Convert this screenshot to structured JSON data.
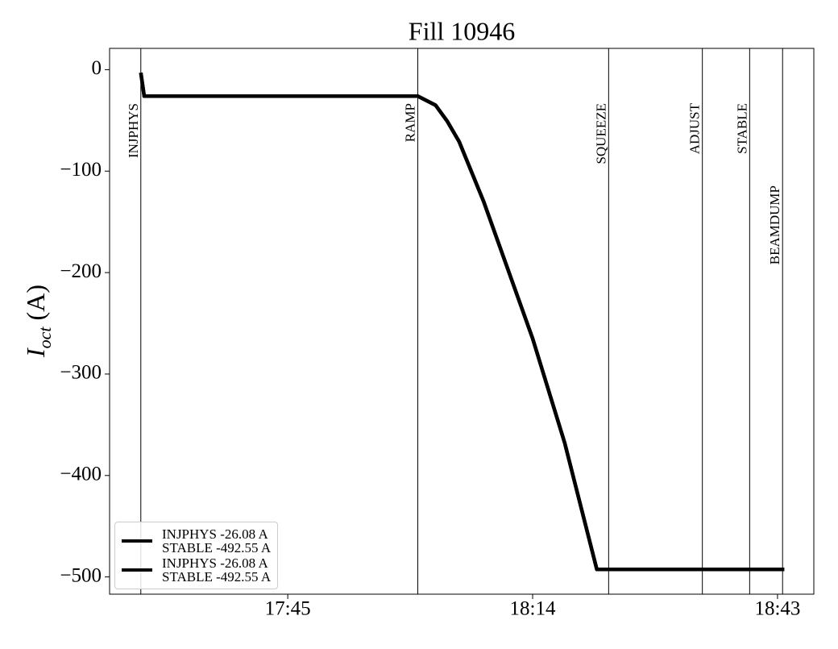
{
  "chart_data": {
    "type": "line",
    "title": "Fill 10946",
    "ylabel": "I_oct (A)",
    "x": [
      1047.6,
      1048.0,
      1080.4,
      1082.5,
      1083.9,
      1085.3,
      1088.2,
      1094.0,
      1097.8,
      1101.6,
      1123.8
    ],
    "series": [
      {
        "name": "INJPHYS -26.08 A\nSTABLE -492.55 A",
        "color": "#000000",
        "values": [
          -3,
          -26.08,
          -26.08,
          -35,
          -51,
          -71,
          -130,
          -265,
          -368,
          -492.55,
          -492.55
        ]
      },
      {
        "name": "INJPHYS -26.08 A\nSTABLE -492.55 A",
        "color": "#000000",
        "values": [
          -3,
          -26.08,
          -26.08,
          -35,
          -51,
          -71,
          -130,
          -265,
          -368,
          -492.55,
          -492.55
        ]
      }
    ],
    "xlim": [
      1043.9,
      1127.3
    ],
    "xticks": [
      {
        "value": 1065,
        "label": "17:45"
      },
      {
        "value": 1094,
        "label": "18:14"
      },
      {
        "value": 1123,
        "label": "18:43"
      }
    ],
    "ylim": [
      -517,
      21
    ],
    "yticks": [
      {
        "value": 0,
        "label": "0"
      },
      {
        "value": -100,
        "label": "−100"
      },
      {
        "value": -200,
        "label": "−200"
      },
      {
        "value": -300,
        "label": "−300"
      },
      {
        "value": -400,
        "label": "−400"
      },
      {
        "value": -500,
        "label": "−500"
      }
    ],
    "events": [
      {
        "label": "INJPHYS",
        "x": 1047.6
      },
      {
        "label": "RAMP",
        "x": 1080.4
      },
      {
        "label": "SQUEEZE",
        "x": 1103.0
      },
      {
        "label": "ADJUST",
        "x": 1114.1
      },
      {
        "label": "STABLE",
        "x": 1119.7
      },
      {
        "label": "BEAMDUMP",
        "x": 1123.6
      }
    ],
    "legend": "lower left"
  }
}
